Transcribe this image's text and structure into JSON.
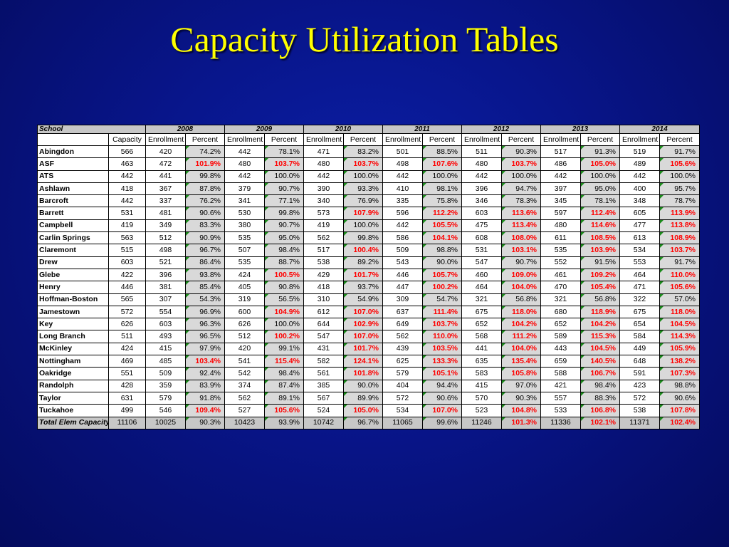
{
  "title": "Capacity Utilization Tables",
  "table": {
    "school_header": "School",
    "years": [
      "2008",
      "2009",
      "2010",
      "2011",
      "2012",
      "2013",
      "2014"
    ],
    "capacity_header": "Capacity",
    "enrollment_header": "Enrollment",
    "percent_header": "Percent",
    "rows": [
      {
        "school": "Abingdon",
        "capacity": "566",
        "data": [
          [
            "420",
            "74.2%"
          ],
          [
            "442",
            "78.1%"
          ],
          [
            "471",
            "83.2%"
          ],
          [
            "501",
            "88.5%"
          ],
          [
            "511",
            "90.3%"
          ],
          [
            "517",
            "91.3%"
          ],
          [
            "519",
            "91.7%"
          ]
        ]
      },
      {
        "school": "ASF",
        "capacity": "463",
        "data": [
          [
            "472",
            "101.9%"
          ],
          [
            "480",
            "103.7%"
          ],
          [
            "480",
            "103.7%"
          ],
          [
            "498",
            "107.6%"
          ],
          [
            "480",
            "103.7%"
          ],
          [
            "486",
            "105.0%"
          ],
          [
            "489",
            "105.6%"
          ]
        ]
      },
      {
        "school": "ATS",
        "capacity": "442",
        "data": [
          [
            "441",
            "99.8%"
          ],
          [
            "442",
            "100.0%"
          ],
          [
            "442",
            "100.0%"
          ],
          [
            "442",
            "100.0%"
          ],
          [
            "442",
            "100.0%"
          ],
          [
            "442",
            "100.0%"
          ],
          [
            "442",
            "100.0%"
          ]
        ]
      },
      {
        "school": "Ashlawn",
        "capacity": "418",
        "data": [
          [
            "367",
            "87.8%"
          ],
          [
            "379",
            "90.7%"
          ],
          [
            "390",
            "93.3%"
          ],
          [
            "410",
            "98.1%"
          ],
          [
            "396",
            "94.7%"
          ],
          [
            "397",
            "95.0%"
          ],
          [
            "400",
            "95.7%"
          ]
        ]
      },
      {
        "school": "Barcroft",
        "capacity": "442",
        "data": [
          [
            "337",
            "76.2%"
          ],
          [
            "341",
            "77.1%"
          ],
          [
            "340",
            "76.9%"
          ],
          [
            "335",
            "75.8%"
          ],
          [
            "346",
            "78.3%"
          ],
          [
            "345",
            "78.1%"
          ],
          [
            "348",
            "78.7%"
          ]
        ]
      },
      {
        "school": "Barrett",
        "capacity": "531",
        "data": [
          [
            "481",
            "90.6%"
          ],
          [
            "530",
            "99.8%"
          ],
          [
            "573",
            "107.9%"
          ],
          [
            "596",
            "112.2%"
          ],
          [
            "603",
            "113.6%"
          ],
          [
            "597",
            "112.4%"
          ],
          [
            "605",
            "113.9%"
          ]
        ]
      },
      {
        "school": "Campbell",
        "capacity": "419",
        "data": [
          [
            "349",
            "83.3%"
          ],
          [
            "380",
            "90.7%"
          ],
          [
            "419",
            "100.0%"
          ],
          [
            "442",
            "105.5%"
          ],
          [
            "475",
            "113.4%"
          ],
          [
            "480",
            "114.6%"
          ],
          [
            "477",
            "113.8%"
          ]
        ]
      },
      {
        "school": "Carlin Springs",
        "capacity": "563",
        "data": [
          [
            "512",
            "90.9%"
          ],
          [
            "535",
            "95.0%"
          ],
          [
            "562",
            "99.8%"
          ],
          [
            "586",
            "104.1%"
          ],
          [
            "608",
            "108.0%"
          ],
          [
            "611",
            "108.5%"
          ],
          [
            "613",
            "108.9%"
          ]
        ]
      },
      {
        "school": "Claremont",
        "capacity": "515",
        "data": [
          [
            "498",
            "96.7%"
          ],
          [
            "507",
            "98.4%"
          ],
          [
            "517",
            "100.4%"
          ],
          [
            "509",
            "98.8%"
          ],
          [
            "531",
            "103.1%"
          ],
          [
            "535",
            "103.9%"
          ],
          [
            "534",
            "103.7%"
          ]
        ]
      },
      {
        "school": "Drew",
        "capacity": "603",
        "data": [
          [
            "521",
            "86.4%"
          ],
          [
            "535",
            "88.7%"
          ],
          [
            "538",
            "89.2%"
          ],
          [
            "543",
            "90.0%"
          ],
          [
            "547",
            "90.7%"
          ],
          [
            "552",
            "91.5%"
          ],
          [
            "553",
            "91.7%"
          ]
        ]
      },
      {
        "school": "Glebe",
        "capacity": "422",
        "data": [
          [
            "396",
            "93.8%"
          ],
          [
            "424",
            "100.5%"
          ],
          [
            "429",
            "101.7%"
          ],
          [
            "446",
            "105.7%"
          ],
          [
            "460",
            "109.0%"
          ],
          [
            "461",
            "109.2%"
          ],
          [
            "464",
            "110.0%"
          ]
        ]
      },
      {
        "school": "Henry",
        "capacity": "446",
        "data": [
          [
            "381",
            "85.4%"
          ],
          [
            "405",
            "90.8%"
          ],
          [
            "418",
            "93.7%"
          ],
          [
            "447",
            "100.2%"
          ],
          [
            "464",
            "104.0%"
          ],
          [
            "470",
            "105.4%"
          ],
          [
            "471",
            "105.6%"
          ]
        ]
      },
      {
        "school": "Hoffman-Boston",
        "capacity": "565",
        "data": [
          [
            "307",
            "54.3%"
          ],
          [
            "319",
            "56.5%"
          ],
          [
            "310",
            "54.9%"
          ],
          [
            "309",
            "54.7%"
          ],
          [
            "321",
            "56.8%"
          ],
          [
            "321",
            "56.8%"
          ],
          [
            "322",
            "57.0%"
          ]
        ]
      },
      {
        "school": "Jamestown",
        "capacity": "572",
        "data": [
          [
            "554",
            "96.9%"
          ],
          [
            "600",
            "104.9%"
          ],
          [
            "612",
            "107.0%"
          ],
          [
            "637",
            "111.4%"
          ],
          [
            "675",
            "118.0%"
          ],
          [
            "680",
            "118.9%"
          ],
          [
            "675",
            "118.0%"
          ]
        ]
      },
      {
        "school": "Key",
        "capacity": "626",
        "data": [
          [
            "603",
            "96.3%"
          ],
          [
            "626",
            "100.0%"
          ],
          [
            "644",
            "102.9%"
          ],
          [
            "649",
            "103.7%"
          ],
          [
            "652",
            "104.2%"
          ],
          [
            "652",
            "104.2%"
          ],
          [
            "654",
            "104.5%"
          ]
        ]
      },
      {
        "school": "Long Branch",
        "capacity": "511",
        "data": [
          [
            "493",
            "96.5%"
          ],
          [
            "512",
            "100.2%"
          ],
          [
            "547",
            "107.0%"
          ],
          [
            "562",
            "110.0%"
          ],
          [
            "568",
            "111.2%"
          ],
          [
            "589",
            "115.3%"
          ],
          [
            "584",
            "114.3%"
          ]
        ]
      },
      {
        "school": "McKinley",
        "capacity": "424",
        "data": [
          [
            "415",
            "97.9%"
          ],
          [
            "420",
            "99.1%"
          ],
          [
            "431",
            "101.7%"
          ],
          [
            "439",
            "103.5%"
          ],
          [
            "441",
            "104.0%"
          ],
          [
            "443",
            "104.5%"
          ],
          [
            "449",
            "105.9%"
          ]
        ]
      },
      {
        "school": "Nottingham",
        "capacity": "469",
        "data": [
          [
            "485",
            "103.4%"
          ],
          [
            "541",
            "115.4%"
          ],
          [
            "582",
            "124.1%"
          ],
          [
            "625",
            "133.3%"
          ],
          [
            "635",
            "135.4%"
          ],
          [
            "659",
            "140.5%"
          ],
          [
            "648",
            "138.2%"
          ]
        ]
      },
      {
        "school": "Oakridge",
        "capacity": "551",
        "data": [
          [
            "509",
            "92.4%"
          ],
          [
            "542",
            "98.4%"
          ],
          [
            "561",
            "101.8%"
          ],
          [
            "579",
            "105.1%"
          ],
          [
            "583",
            "105.8%"
          ],
          [
            "588",
            "106.7%"
          ],
          [
            "591",
            "107.3%"
          ]
        ]
      },
      {
        "school": "Randolph",
        "capacity": "428",
        "data": [
          [
            "359",
            "83.9%"
          ],
          [
            "374",
            "87.4%"
          ],
          [
            "385",
            "90.0%"
          ],
          [
            "404",
            "94.4%"
          ],
          [
            "415",
            "97.0%"
          ],
          [
            "421",
            "98.4%"
          ],
          [
            "423",
            "98.8%"
          ]
        ]
      },
      {
        "school": "Taylor",
        "capacity": "631",
        "data": [
          [
            "579",
            "91.8%"
          ],
          [
            "562",
            "89.1%"
          ],
          [
            "567",
            "89.9%"
          ],
          [
            "572",
            "90.6%"
          ],
          [
            "570",
            "90.3%"
          ],
          [
            "557",
            "88.3%"
          ],
          [
            "572",
            "90.6%"
          ]
        ]
      },
      {
        "school": "Tuckahoe",
        "capacity": "499",
        "data": [
          [
            "546",
            "109.4%"
          ],
          [
            "527",
            "105.6%"
          ],
          [
            "524",
            "105.0%"
          ],
          [
            "534",
            "107.0%"
          ],
          [
            "523",
            "104.8%"
          ],
          [
            "533",
            "106.8%"
          ],
          [
            "538",
            "107.8%"
          ]
        ]
      }
    ],
    "total": {
      "school": "Total Elem Capacity",
      "capacity": "11106",
      "data": [
        [
          "10025",
          "90.3%"
        ],
        [
          "10423",
          "93.9%"
        ],
        [
          "10742",
          "96.7%"
        ],
        [
          "11065",
          "99.6%"
        ],
        [
          "11246",
          "101.3%"
        ],
        [
          "11336",
          "102.1%"
        ],
        [
          "11371",
          "102.4%"
        ]
      ]
    }
  },
  "colors": {
    "over_capacity": "#ff0000",
    "title": "#ffff00"
  }
}
